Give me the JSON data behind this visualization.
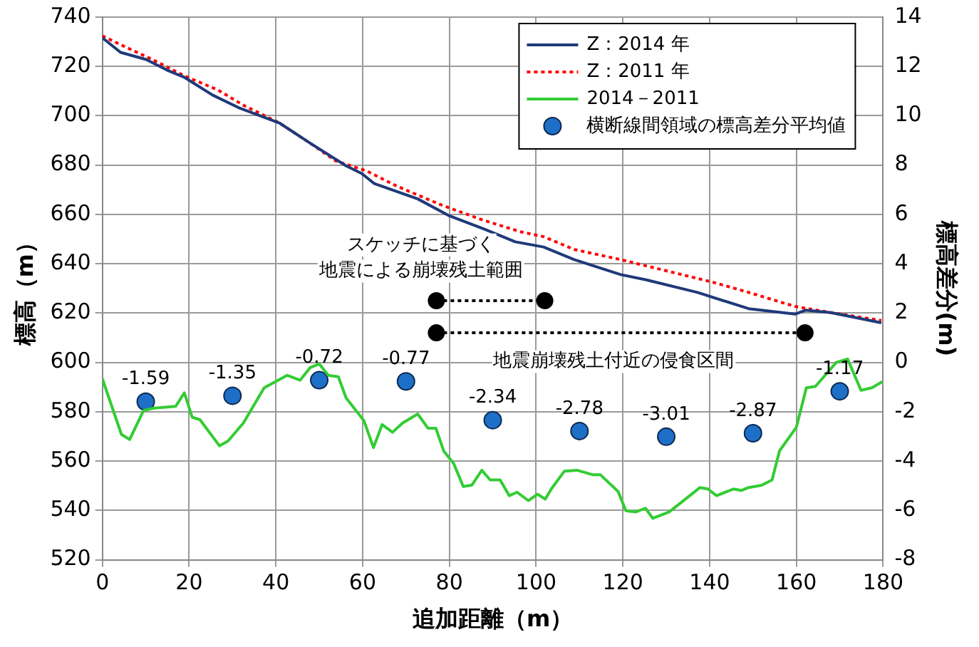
{
  "chart_data": {
    "type": "line",
    "xlabel": "追加距離（m）",
    "ylabel": "標高（m）",
    "y2label": "標高差分(m)",
    "xlim": [
      0,
      180
    ],
    "xticks": [
      0,
      20,
      40,
      60,
      80,
      100,
      120,
      140,
      160,
      180
    ],
    "ylim": [
      520,
      740
    ],
    "yticks": [
      520,
      540,
      560,
      580,
      600,
      620,
      640,
      660,
      680,
      700,
      720,
      740
    ],
    "y2lim": [
      -8,
      14
    ],
    "y2ticks": [
      -8,
      -6,
      -4,
      -2,
      0,
      2,
      4,
      6,
      8,
      10,
      12,
      14
    ],
    "grid": true,
    "legend": "top right",
    "series": [
      {
        "name": "Z：2014 年",
        "color": "#1f3a7a",
        "marker": "none",
        "line_style": "solid",
        "x": [
          0,
          4.2,
          10.1,
          14.8,
          18.9,
          25.4,
          31.4,
          40.8,
          47.9,
          56.2,
          59.8,
          62.7,
          72.7,
          79.8,
          88.1,
          95.2,
          101.7,
          108.8,
          119.5,
          125.4,
          137.2,
          149,
          159.7,
          162.1,
          168,
          179.6
        ],
        "values": [
          731.6,
          725.7,
          722.8,
          718.6,
          715.6,
          708.4,
          703.3,
          697.1,
          688.9,
          679.7,
          676.6,
          672.5,
          666.3,
          659.6,
          654,
          648.9,
          646.8,
          641.7,
          635.6,
          633.5,
          628.4,
          621.8,
          619.6,
          621.2,
          620.2,
          616.1
        ]
      },
      {
        "name": "Z：2011 年",
        "color": "#ff0000",
        "marker": "none",
        "line_style": "dotted",
        "x": [
          0,
          5.3,
          11.2,
          18.9,
          26.6,
          32.5,
          40.8,
          47.9,
          53.8,
          61,
          68,
          77.5,
          86.9,
          96.4,
          101.7,
          108.8,
          119.5,
          131.3,
          140.8,
          149,
          159.7,
          168,
          179.6
        ],
        "values": [
          732.4,
          727.9,
          723.1,
          716.2,
          710.5,
          704.3,
          697.1,
          688.9,
          681.7,
          677.6,
          671.4,
          664.3,
          658.2,
          653,
          651,
          645.8,
          641.7,
          636.6,
          632.5,
          628.4,
          622.7,
          620.2,
          617
        ]
      },
      {
        "name": "2014－2011",
        "axis": "y2",
        "color": "#33cc33",
        "marker": "none",
        "line_style": "solid",
        "x": [
          0,
          4.4,
          6.3,
          9.5,
          11.9,
          16.9,
          18.9,
          20.7,
          22.5,
          27,
          29,
          32.5,
          37.3,
          42.6,
          45.6,
          47.9,
          50,
          52.1,
          54.4,
          56.2,
          60.3,
          62.5,
          64.5,
          66.9,
          69.2,
          72.7,
          75.1,
          76.9,
          78.7,
          81,
          83.2,
          85.2,
          87.5,
          89.4,
          91.7,
          93.8,
          95.6,
          98.2,
          100.3,
          102.1,
          103.5,
          106.5,
          109.4,
          113,
          114.8,
          118.9,
          120.7,
          123,
          125.2,
          126.9,
          130.7,
          137.8,
          139.6,
          141.6,
          145.5,
          147.3,
          149,
          152,
          154.4,
          156.1,
          160,
          162.3,
          164.4,
          169.2,
          171.8,
          174.9,
          177.4,
          179.8
        ],
        "values": [
          -0.66,
          -2.92,
          -3.12,
          -1.95,
          -1.85,
          -1.78,
          -1.23,
          -2.22,
          -2.32,
          -3.38,
          -3.18,
          -2.46,
          -1.03,
          -0.52,
          -0.72,
          -0.21,
          -0.06,
          -0.52,
          -0.58,
          -1.44,
          -2.36,
          -3.45,
          -2.52,
          -2.83,
          -2.46,
          -2.09,
          -2.67,
          -2.67,
          -3.59,
          -4.1,
          -5.03,
          -4.97,
          -4.37,
          -4.76,
          -4.76,
          -5.4,
          -5.26,
          -5.6,
          -5.34,
          -5.54,
          -5.13,
          -4.41,
          -4.37,
          -4.55,
          -4.55,
          -5.23,
          -6.01,
          -6.06,
          -5.91,
          -6.32,
          -6.06,
          -5.07,
          -5.13,
          -5.4,
          -5.13,
          -5.19,
          -5.07,
          -4.98,
          -4.76,
          -3.59,
          -2.63,
          -1.03,
          -0.97,
          0,
          0.14,
          -1.13,
          -1.03,
          -0.78
        ]
      },
      {
        "name": "横断線間領域の標高差分平均値",
        "type": "scatter",
        "axis": "y2",
        "color": "#1e6fc8",
        "marker": "circle",
        "x": [
          10,
          30,
          50,
          70,
          90,
          110,
          130,
          150,
          170
        ],
        "values": [
          -1.59,
          -1.35,
          -0.72,
          -0.77,
          -2.34,
          -2.78,
          -3.01,
          -2.87,
          -1.17
        ],
        "value_labels": [
          "-1.59",
          "-1.35",
          "-0.72",
          "-0.77",
          "-2.34",
          "-2.78",
          "-3.01",
          "-2.87",
          "-1.17"
        ]
      },
      {
        "color": "#000000",
        "marker": "circle",
        "line_style": "dotted",
        "x": [
          77,
          102
        ],
        "values": [
          625,
          625
        ]
      },
      {
        "color": "#000000",
        "marker": "circle",
        "line_style": "dotted",
        "x": [
          77,
          162
        ],
        "values": [
          612,
          612
        ]
      }
    ],
    "annotations": [
      "スケッチに基づく",
      "地震による崩壊残土範囲",
      "地震崩壊残土付近の侵食区間"
    ]
  }
}
